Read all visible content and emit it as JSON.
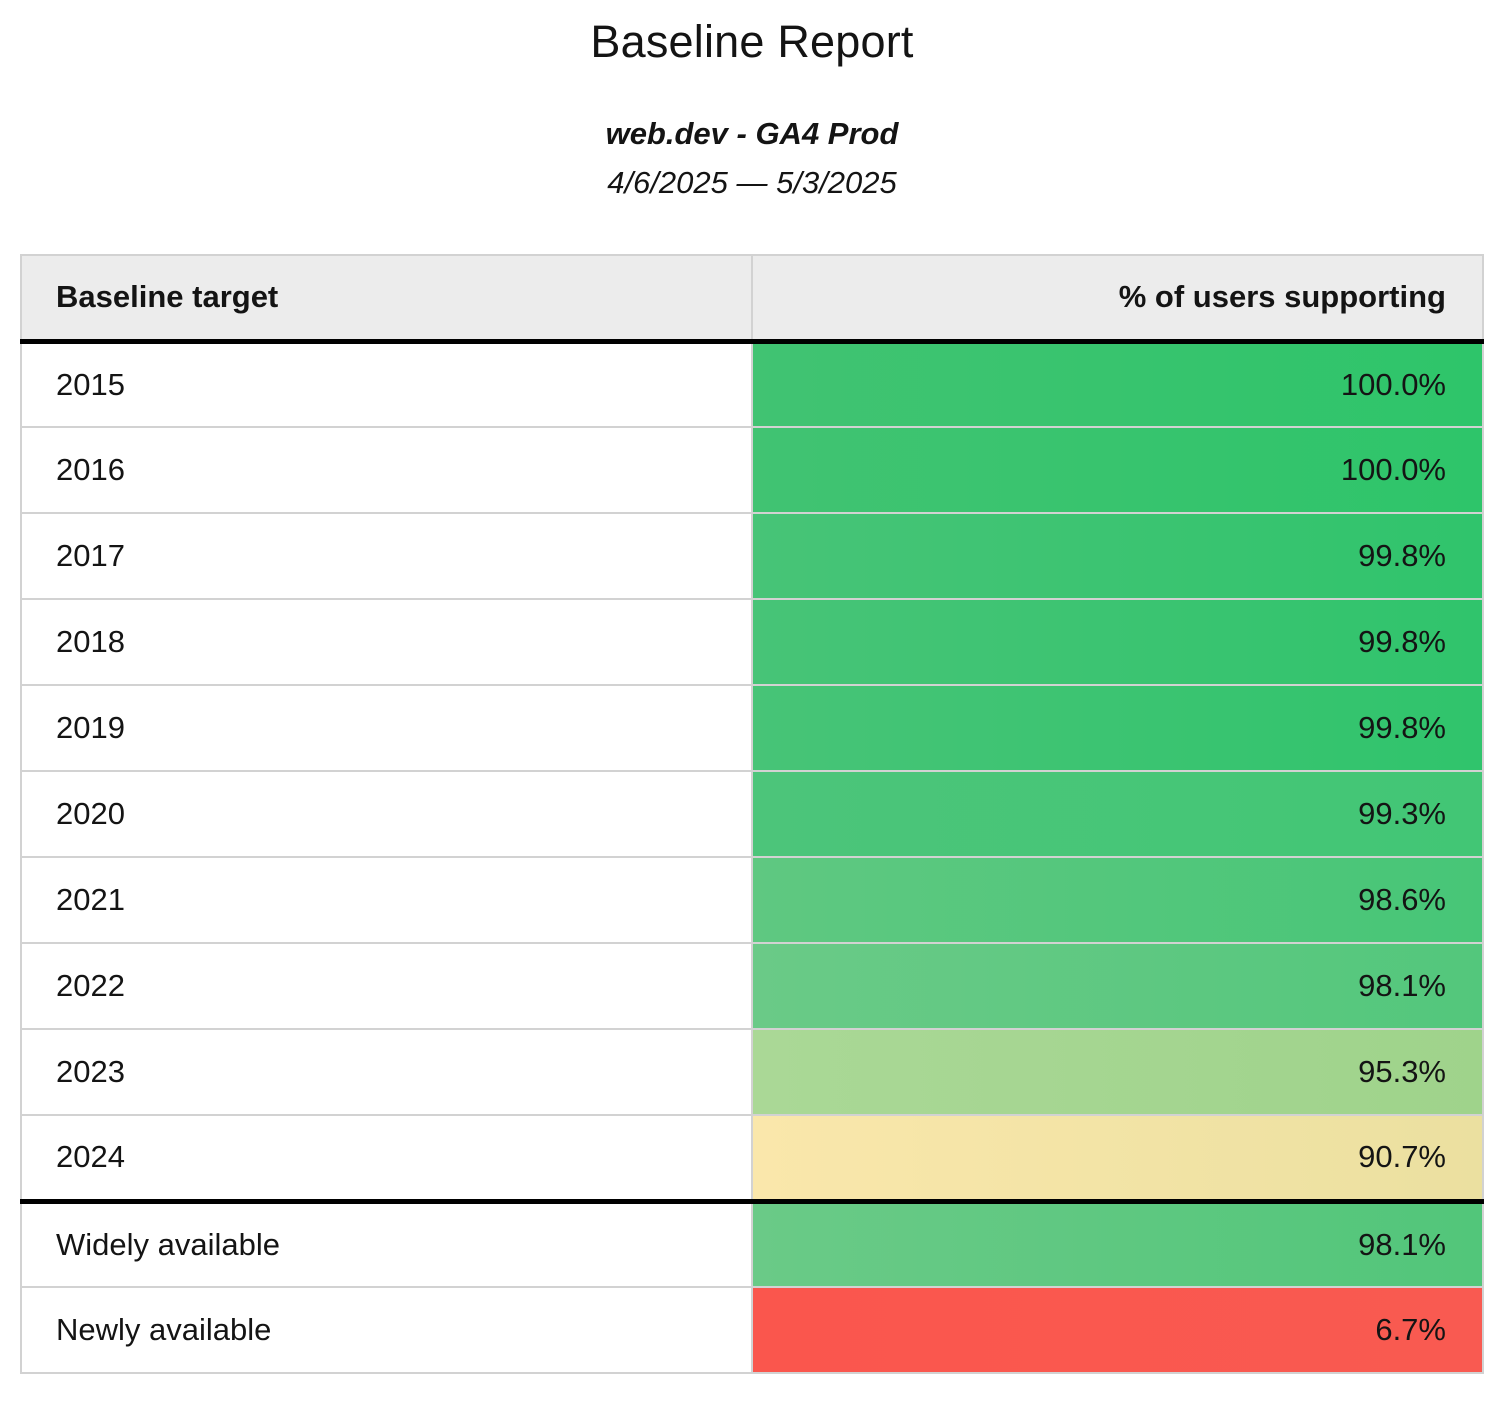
{
  "page": {
    "title": "Baseline Report",
    "subtitle": "web.dev - GA4 Prod",
    "date_range": "4/6/2025 — 5/3/2025"
  },
  "table": {
    "header": {
      "target_label": "Baseline target",
      "value_label": "% of users supporting"
    },
    "rows": [
      {
        "target": "2015",
        "value": "100.0%",
        "color_left": "#41c372",
        "color_right": "#2ec56a",
        "thick_top": false
      },
      {
        "target": "2016",
        "value": "100.0%",
        "color_left": "#41c372",
        "color_right": "#2ec56a",
        "thick_top": false
      },
      {
        "target": "2017",
        "value": "99.8%",
        "color_left": "#47c477",
        "color_right": "#30c46c",
        "thick_top": false
      },
      {
        "target": "2018",
        "value": "99.8%",
        "color_left": "#47c477",
        "color_right": "#30c46c",
        "thick_top": false
      },
      {
        "target": "2019",
        "value": "99.8%",
        "color_left": "#47c477",
        "color_right": "#30c46c",
        "thick_top": false
      },
      {
        "target": "2020",
        "value": "99.3%",
        "color_left": "#4cc57a",
        "color_right": "#42c675",
        "thick_top": false
      },
      {
        "target": "2021",
        "value": "98.6%",
        "color_left": "#5fc881",
        "color_right": "#47c677",
        "thick_top": false
      },
      {
        "target": "2022",
        "value": "98.1%",
        "color_left": "#6aca87",
        "color_right": "#53c77c",
        "thick_top": false
      },
      {
        "target": "2023",
        "value": "95.3%",
        "color_left": "#aad896",
        "color_right": "#9fd38b",
        "thick_top": false
      },
      {
        "target": "2024",
        "value": "90.7%",
        "color_left": "#fae7ab",
        "color_right": "#ebe0a0",
        "thick_top": false
      },
      {
        "target": "Widely available",
        "value": "98.1%",
        "color_left": "#6aca87",
        "color_right": "#52c67a",
        "thick_top": true
      },
      {
        "target": "Newly available",
        "value": "6.7%",
        "color_left": "#fa564d",
        "color_right": "#f95a51",
        "thick_top": false
      }
    ],
    "styles": {
      "header_bg": "#ececec",
      "grid_border": "#d2d2d2",
      "strong_border": "#000000"
    }
  },
  "chart_data": {
    "type": "table",
    "title": "Baseline Report",
    "subtitle": "web.dev - GA4 Prod",
    "date_range": "4/6/2025 — 5/3/2025",
    "columns": [
      "Baseline target",
      "% of users supporting"
    ],
    "categories": [
      "2015",
      "2016",
      "2017",
      "2018",
      "2019",
      "2020",
      "2021",
      "2022",
      "2023",
      "2024",
      "Widely available",
      "Newly available"
    ],
    "values": [
      100.0,
      100.0,
      99.8,
      99.8,
      99.8,
      99.3,
      98.6,
      98.1,
      95.3,
      90.7,
      98.1,
      6.7
    ],
    "value_unit": "percent of users supporting",
    "layout_hints": {
      "value_cell_color_scale": "heatmap: green (high) → light green → yellow (~90%) → red (low)",
      "thick_black_rule_above": "Widely available",
      "header_background": "#ececec"
    }
  }
}
